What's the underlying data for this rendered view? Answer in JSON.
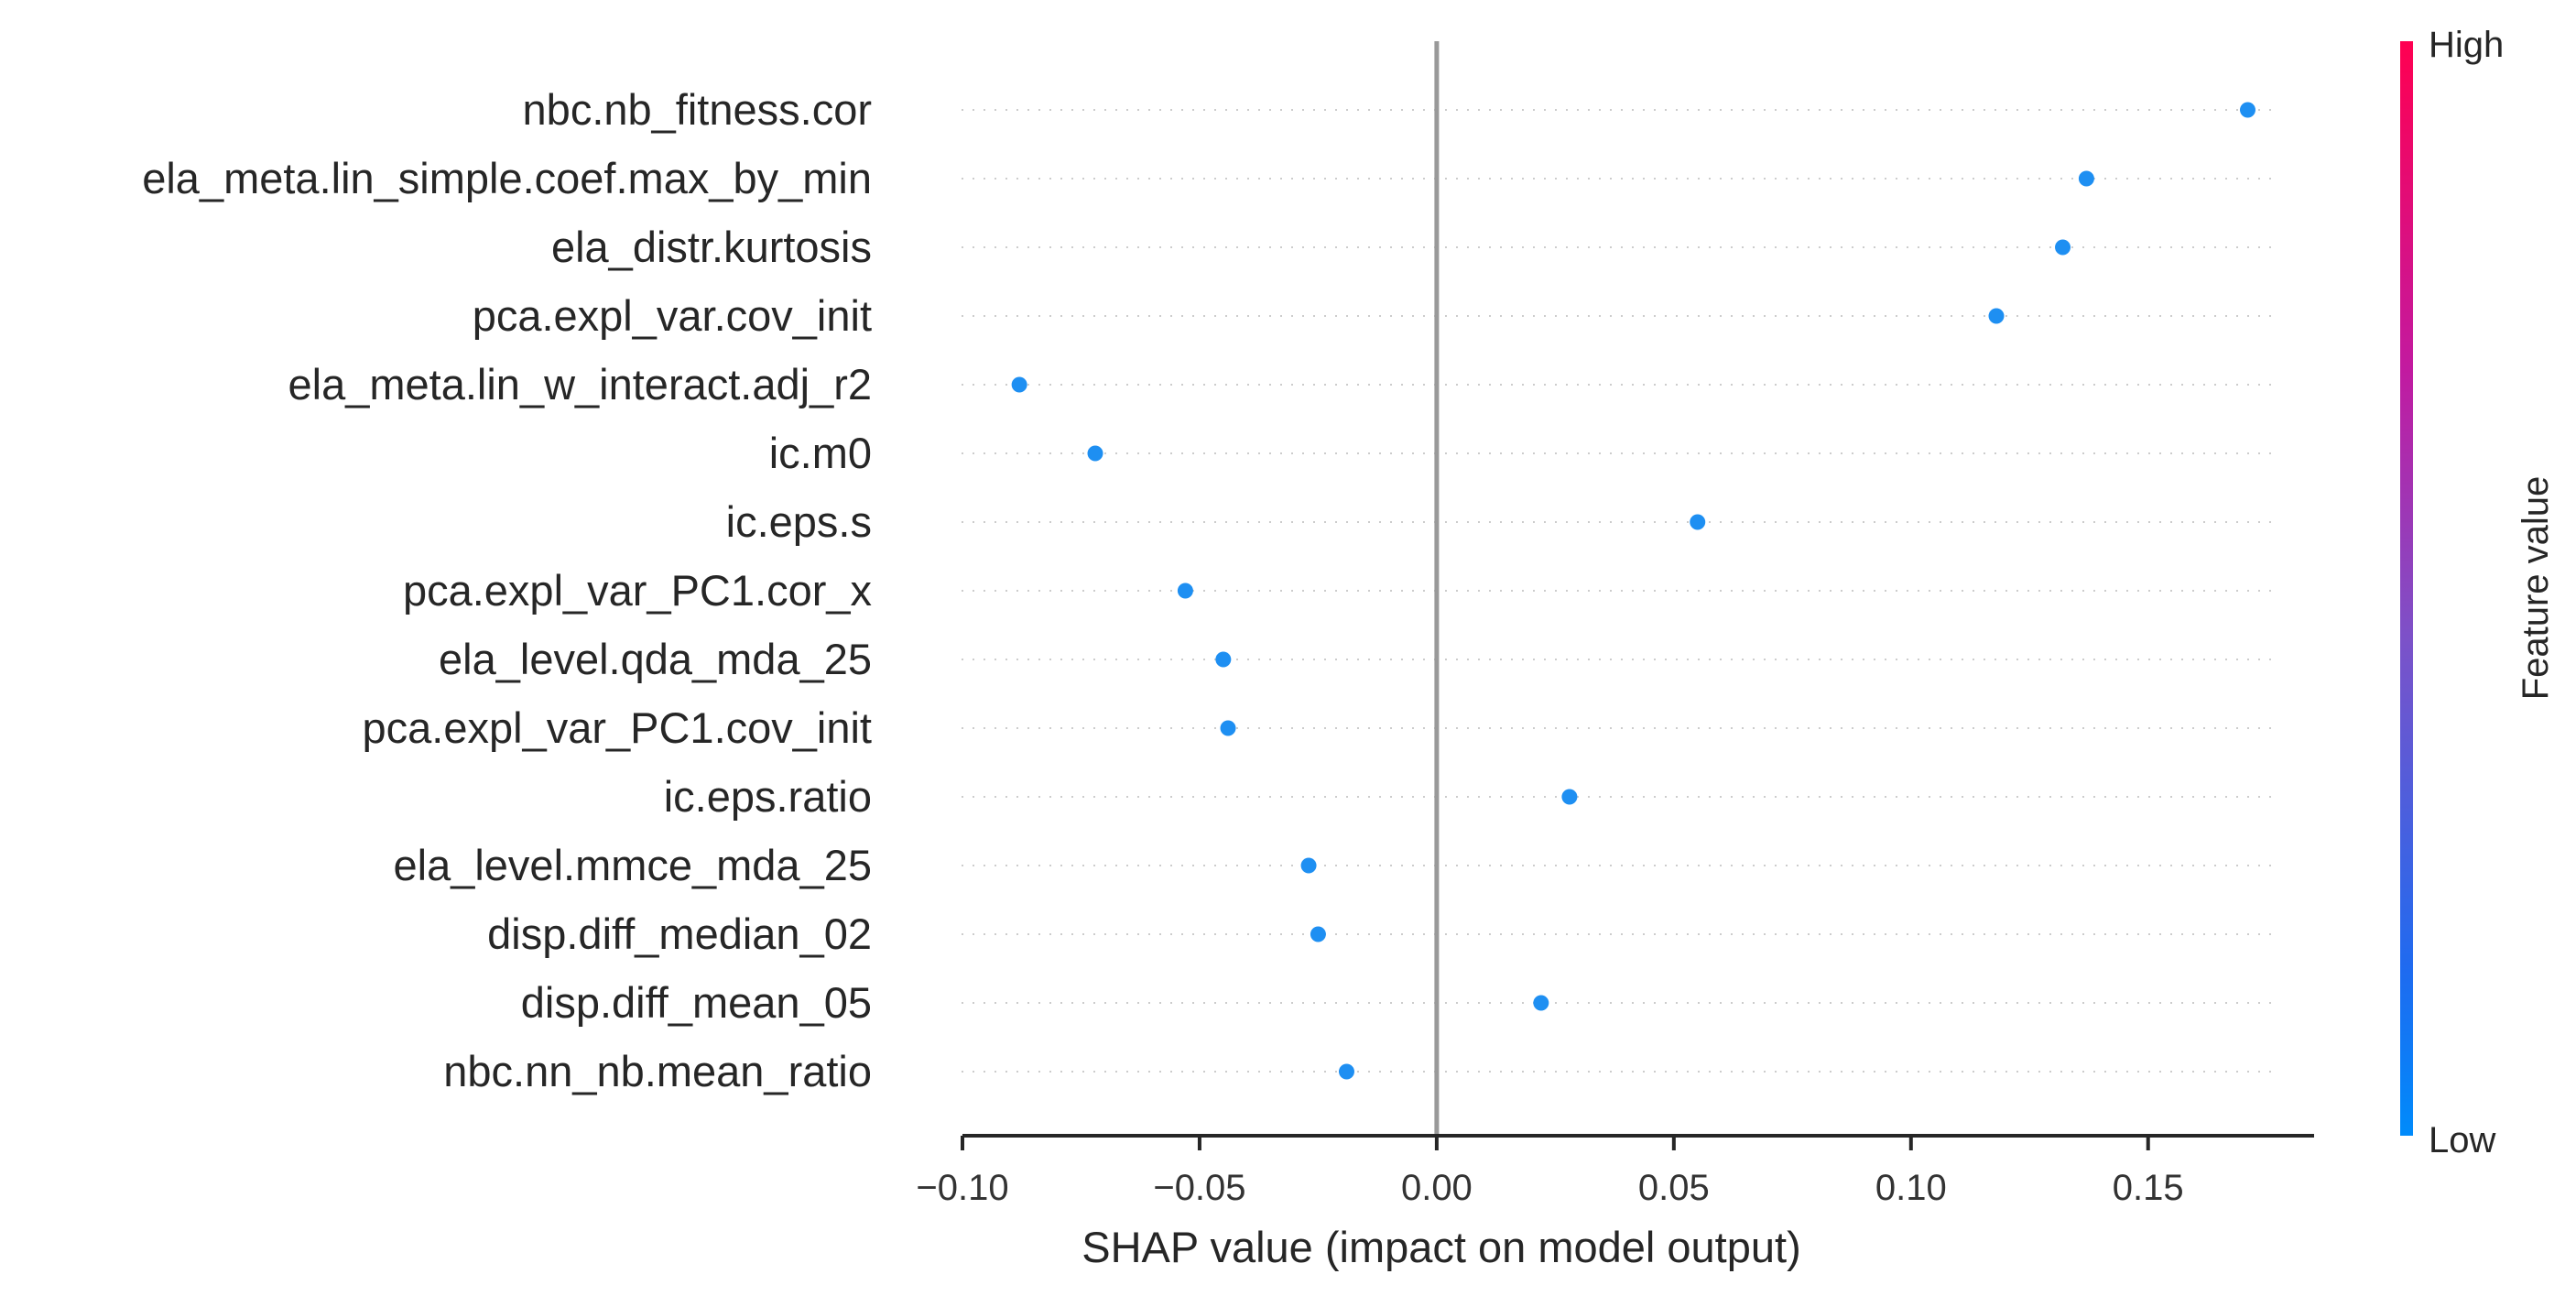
{
  "chart_data": {
    "type": "scatter",
    "xlabel": "SHAP value (impact on model output)",
    "xlim": [
      -0.1,
      0.185
    ],
    "x_ticks": [
      -0.1,
      -0.05,
      0.0,
      0.05,
      0.1,
      0.15
    ],
    "x_tick_labels": [
      "−0.10",
      "−0.05",
      "0.00",
      "0.05",
      "0.10",
      "0.15"
    ],
    "grid": "dotted horizontal rows",
    "points": [
      {
        "feature": "nbc.nb_fitness.cor",
        "shap": 0.171
      },
      {
        "feature": "ela_meta.lin_simple.coef.max_by_min",
        "shap": 0.137
      },
      {
        "feature": "ela_distr.kurtosis",
        "shap": 0.132
      },
      {
        "feature": "pca.expl_var.cov_init",
        "shap": 0.118
      },
      {
        "feature": "ela_meta.lin_w_interact.adj_r2",
        "shap": -0.088
      },
      {
        "feature": "ic.m0",
        "shap": -0.072
      },
      {
        "feature": "ic.eps.s",
        "shap": 0.055
      },
      {
        "feature": "pca.expl_var_PC1.cor_x",
        "shap": -0.053
      },
      {
        "feature": "ela_level.qda_mda_25",
        "shap": -0.045
      },
      {
        "feature": "pca.expl_var_PC1.cov_init",
        "shap": -0.044
      },
      {
        "feature": "ic.eps.ratio",
        "shap": 0.028
      },
      {
        "feature": "ela_level.mmce_mda_25",
        "shap": -0.027
      },
      {
        "feature": "disp.diff_median_02",
        "shap": -0.025
      },
      {
        "feature": "disp.diff_mean_05",
        "shap": 0.022
      },
      {
        "feature": "nbc.nn_nb.mean_ratio",
        "shap": -0.019
      }
    ],
    "point_color": "#1e8ff2",
    "colorbar": {
      "label": "Feature value",
      "high_label": "High",
      "low_label": "Low",
      "high_color": "#ff0051",
      "low_color": "#008bfb"
    }
  }
}
